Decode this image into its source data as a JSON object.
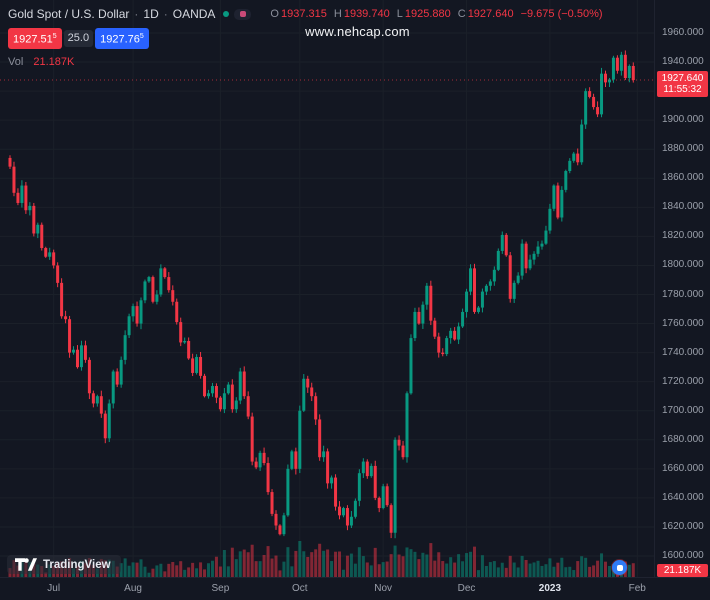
{
  "watermark": "www.nehcap.com",
  "header": {
    "symbol_title": "Gold Spot / U.S. Dollar",
    "separator": "·",
    "interval": "1D",
    "exchange": "OANDA",
    "ohlc": {
      "o_label": "O",
      "o": "1937.315",
      "h_label": "H",
      "h": "1939.740",
      "l_label": "L",
      "l": "1925.880",
      "c_label": "C",
      "c": "1927.640",
      "change": "−9.675 (−0.50%)"
    }
  },
  "trade": {
    "bid": "1927.51",
    "bid_sup": "5",
    "spread": "25.0",
    "ask": "1927.76",
    "ask_sup": "5"
  },
  "volume_row": {
    "label": "Vol",
    "value": "21.187K"
  },
  "price_axis": {
    "current_price": "1927.640",
    "countdown": "11:55:32",
    "volume_badge": "21.187K"
  },
  "branding": {
    "logo_text": "TradingView"
  },
  "colors": {
    "up": "#089981",
    "down": "#f23645",
    "blue": "#2962ff",
    "badge": "#f23645",
    "grid": "#1b2029",
    "bg": "#131722",
    "axis_text": "#9ba0ab"
  },
  "chart_data": {
    "type": "candlestick",
    "symbol": "Gold Spot / U.S. Dollar (OANDA)",
    "timeframe": "1D",
    "volume_pane": true,
    "y_range": [
      1600,
      1960
    ],
    "y_tick_step": 20,
    "y_tick_labels": [
      "1960.000",
      "1940.000",
      "1920.000",
      "1900.000",
      "1880.000",
      "1860.000",
      "1840.000",
      "1820.000",
      "1800.000",
      "1780.000",
      "1760.000",
      "1740.000",
      "1720.000",
      "1700.000",
      "1680.000",
      "1660.000",
      "1640.000",
      "1620.000",
      "1600.000"
    ],
    "x_labels": [
      {
        "text": "Jul",
        "idx": 11
      },
      {
        "text": "Aug",
        "idx": 31
      },
      {
        "text": "Sep",
        "idx": 53
      },
      {
        "text": "Oct",
        "idx": 73
      },
      {
        "text": "Nov",
        "idx": 94
      },
      {
        "text": "Dec",
        "idx": 115
      },
      {
        "text": "2023",
        "idx": 136,
        "em": true
      },
      {
        "text": "Feb",
        "idx": 158
      }
    ],
    "first_open": 1874,
    "closes": [
      1868,
      1850,
      1843,
      1855,
      1838,
      1841,
      1822,
      1828,
      1812,
      1806,
      1809,
      1800,
      1788,
      1765,
      1763,
      1740,
      1742,
      1730,
      1745,
      1735,
      1712,
      1705,
      1710,
      1698,
      1681,
      1705,
      1727,
      1718,
      1735,
      1752,
      1765,
      1772,
      1760,
      1776,
      1789,
      1792,
      1775,
      1780,
      1798,
      1792,
      1783,
      1775,
      1761,
      1747,
      1748,
      1736,
      1726,
      1737,
      1724,
      1710,
      1712,
      1717,
      1709,
      1701,
      1712,
      1718,
      1701,
      1707,
      1727,
      1710,
      1696,
      1665,
      1661,
      1671,
      1664,
      1644,
      1629,
      1621,
      1615,
      1628,
      1660,
      1672,
      1660,
      1700,
      1722,
      1716,
      1710,
      1694,
      1668,
      1672,
      1650,
      1654,
      1634,
      1628,
      1633,
      1621,
      1627,
      1638,
      1657,
      1665,
      1655,
      1662,
      1640,
      1633,
      1648,
      1635,
      1616,
      1680,
      1676,
      1668,
      1712,
      1750,
      1768,
      1760,
      1773,
      1786,
      1762,
      1751,
      1740,
      1739,
      1750,
      1755,
      1749,
      1758,
      1768,
      1782,
      1798,
      1768,
      1771,
      1782,
      1786,
      1789,
      1797,
      1810,
      1821,
      1807,
      1777,
      1788,
      1793,
      1815,
      1798,
      1804,
      1808,
      1813,
      1815,
      1824,
      1839,
      1855,
      1833,
      1852,
      1865,
      1872,
      1877,
      1871,
      1897,
      1920,
      1916,
      1909,
      1904,
      1932,
      1926,
      1928,
      1943,
      1934,
      1945,
      1929,
      1937.315,
      1927.64
    ],
    "last_candle": {
      "open": 1937.315,
      "high": 1939.74,
      "low": 1925.88,
      "close": 1927.64
    },
    "last_volume": "21.187K"
  }
}
